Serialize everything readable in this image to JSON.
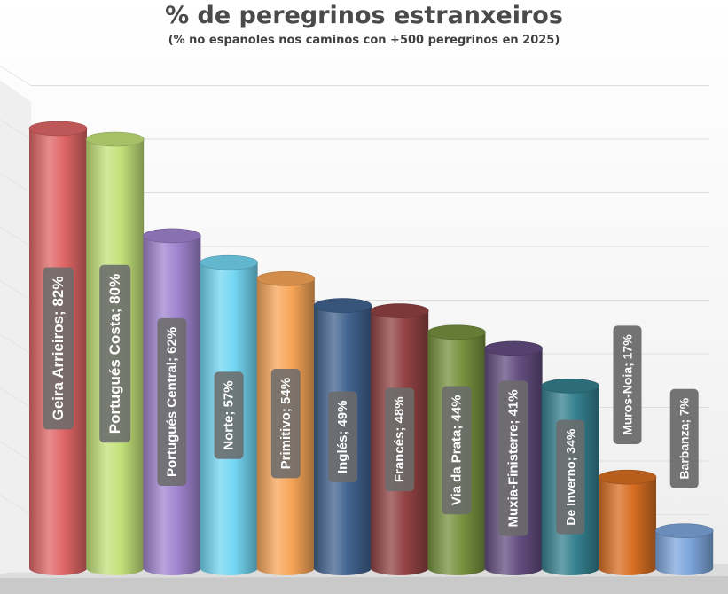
{
  "chart_data": {
    "type": "bar",
    "title": "% de peregrinos estranxeiros",
    "subtitle": "(% no españoles nos camiños con +500 peregrinos en 2025)",
    "xlabel": "",
    "ylabel": "",
    "ylim": [
      0,
      90
    ],
    "grid": true,
    "legend": "none",
    "categories": [
      "Geira Arrieiros",
      "Portugués Costa",
      "Portugués Central",
      "Norte",
      "Primitivo",
      "Inglés",
      "Francés",
      "Via da Prata",
      "Muxia-Finisterre",
      "De Inverno",
      "Muros-Noia",
      "Barbanza"
    ],
    "values": [
      82,
      80,
      62,
      57,
      54,
      49,
      48,
      44,
      41,
      34,
      17,
      7
    ],
    "unit": "%",
    "labels": [
      "Geira Arrieiros; 82%",
      "Portugués Costa; 80%",
      "Portugués Central; 62%",
      "Norte; 57%",
      "Primitivo; 54%",
      "Inglés; 49%",
      "Francés; 48%",
      "Via da Prata; 44%",
      "Muxia-Finisterre; 41%",
      "De Inverno; 34%",
      "Muros-Noia; 17%",
      "Barbanza; 7%"
    ],
    "colors": [
      "#e06666",
      "#c3e27a",
      "#a084d0",
      "#73d6f2",
      "#f8a658",
      "#41638f",
      "#924243",
      "#77913f",
      "#634d80",
      "#35808f",
      "#d86e22",
      "#7da6dc"
    ]
  }
}
